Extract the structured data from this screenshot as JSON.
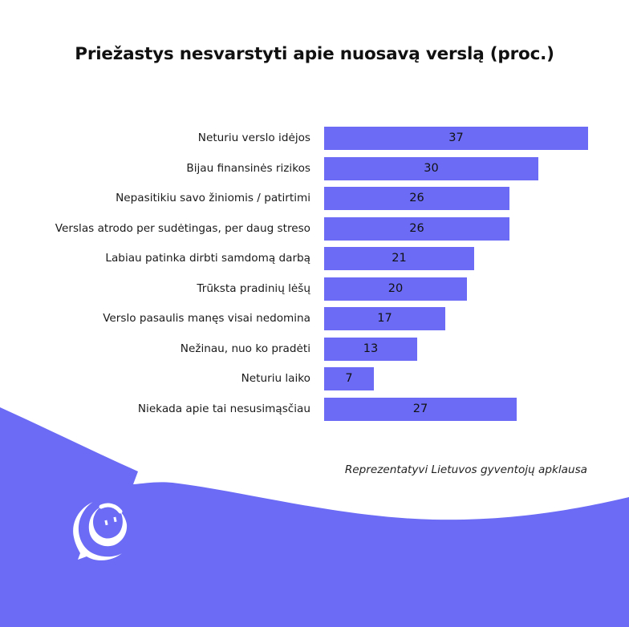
{
  "title": "Priežastys nesvarstyti apie nuosavą verslą (proc.)",
  "source": "Reprezentatyvi Lietuvos gyventojų apklausa",
  "colors": {
    "bar": "#6b6bf5",
    "background_wave": "#6b6bf5",
    "text": "#111111",
    "background": "#ffffff"
  },
  "logo": {
    "icon": "smiling-crescent-speech-bubble-icon"
  },
  "chart_data": {
    "type": "bar",
    "orientation": "horizontal",
    "title": "Priežastys nesvarstyti apie nuosavą verslą (proc.)",
    "xlabel": "",
    "ylabel": "",
    "unit": "%",
    "grid": false,
    "legend": null,
    "xlim": [
      0,
      37
    ],
    "categories": [
      "Neturiu verslo idėjos",
      "Bijau finansinės rizikos",
      "Nepasitikiu savo žiniomis / patirtimi",
      "Verslas atrodo per sudėtingas, per daug streso",
      "Labiau patinka dirbti samdomą darbą",
      "Trūksta pradinių lėšų",
      "Verslo pasaulis manęs visai nedomina",
      "Nežinau, nuo ko pradėti",
      "Neturiu laiko",
      "Niekada apie tai nesusimąsčiau"
    ],
    "values": [
      37,
      30,
      26,
      26,
      21,
      20,
      17,
      13,
      7,
      27
    ],
    "annotations": [
      "Reprezentatyvi Lietuvos gyventojų apklausa"
    ]
  }
}
